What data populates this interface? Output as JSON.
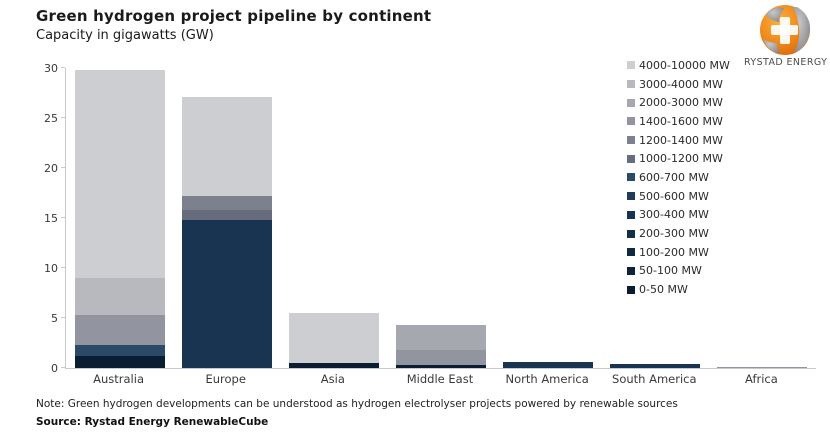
{
  "title": "Green hydrogen project pipeline by continent",
  "subtitle": "Capacity in gigawatts (GW)",
  "logo": {
    "text": "RYSTAD ENERGY"
  },
  "note": "Note: Green hydrogen developments can be understood as hydrogen electrolyser projects powered by renewable sources",
  "source": "Source: Rystad Energy RenewableCube",
  "chart_data": {
    "type": "bar",
    "stacked": true,
    "title": "Green hydrogen project pipeline by continent",
    "subtitle": "Capacity in gigawatts (GW)",
    "xlabel": "",
    "ylabel": "Capacity (GW)",
    "ylim": [
      0,
      30
    ],
    "y_ticks": [
      0,
      5,
      10,
      15,
      20,
      25,
      30
    ],
    "grid": false,
    "legend_position": "right-overlay",
    "categories": [
      "Australia",
      "Europe",
      "Asia",
      "Middle East",
      "North America",
      "South America",
      "Africa"
    ],
    "legend": [
      {
        "label": "4000-10000 MW",
        "color": "#cdced2"
      },
      {
        "label": "3000-4000 MW",
        "color": "#b7b9bf"
      },
      {
        "label": "2000-3000 MW",
        "color": "#a6a8af"
      },
      {
        "label": "1400-1600 MW",
        "color": "#92959f"
      },
      {
        "label": "1200-1400 MW",
        "color": "#7c818d"
      },
      {
        "label": "1000-1200 MW",
        "color": "#666c7b"
      },
      {
        "label": "600-700 MW",
        "color": "#2b4a66"
      },
      {
        "label": "500-600 MW",
        "color": "#1f3d59"
      },
      {
        "label": "300-400 MW",
        "color": "#193450"
      },
      {
        "label": "200-300 MW",
        "color": "#152e48"
      },
      {
        "label": "100-200 MW",
        "color": "#112940"
      },
      {
        "label": "50-100 MW",
        "color": "#0e2338"
      },
      {
        "label": "0-50 MW",
        "color": "#0b1d30"
      }
    ],
    "bars": [
      {
        "continent": "Australia",
        "total": 29.8,
        "segments": [
          {
            "range": "0-50 MW",
            "value": 1.2
          },
          {
            "range": "600-700 MW",
            "value": 1.1
          },
          {
            "range": "1400-1600 MW",
            "value": 3.0
          },
          {
            "range": "3000-4000 MW",
            "value": 3.7
          },
          {
            "range": "4000-10000 MW",
            "value": 20.8
          }
        ]
      },
      {
        "continent": "Europe",
        "total": 27.1,
        "segments": [
          {
            "range": "300-400 MW",
            "value": 14.8
          },
          {
            "range": "1000-1200 MW",
            "value": 1.0
          },
          {
            "range": "1200-1400 MW",
            "value": 1.4
          },
          {
            "range": "4000-10000 MW",
            "value": 9.9
          }
        ]
      },
      {
        "continent": "Asia",
        "total": 5.5,
        "segments": [
          {
            "range": "0-50 MW",
            "value": 0.5
          },
          {
            "range": "4000-10000 MW",
            "value": 5.0
          }
        ]
      },
      {
        "continent": "Middle East",
        "total": 4.3,
        "segments": [
          {
            "range": "0-50 MW",
            "value": 0.3
          },
          {
            "range": "1400-1600 MW",
            "value": 1.5
          },
          {
            "range": "2000-3000 MW",
            "value": 2.5
          }
        ]
      },
      {
        "continent": "North America",
        "total": 0.6,
        "segments": [
          {
            "range": "300-400 MW",
            "value": 0.6
          }
        ]
      },
      {
        "continent": "South America",
        "total": 0.4,
        "segments": [
          {
            "range": "300-400 MW",
            "value": 0.4
          }
        ]
      },
      {
        "continent": "Africa",
        "total": 0.15,
        "segments": [
          {
            "range": "1400-1600 MW",
            "value": 0.15
          }
        ]
      }
    ]
  }
}
